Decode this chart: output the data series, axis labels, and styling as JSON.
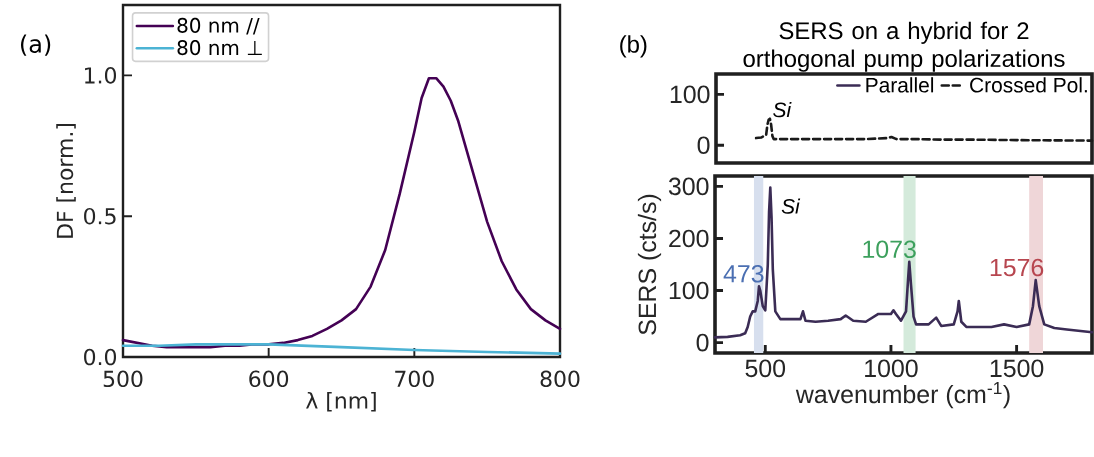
{
  "chart_data": [
    {
      "type": "line",
      "xlabel": "λ [nm]",
      "ylabel": "DF [norm.]",
      "xlim": [
        500,
        800
      ],
      "ylim": [
        0,
        1.25
      ],
      "xticks": [
        500,
        600,
        700,
        800
      ],
      "yticks": [
        {
          "value": 0,
          "label": "0.0"
        },
        {
          "value": 0.5,
          "label": "0.5"
        },
        {
          "value": 1,
          "label": "1.0"
        }
      ],
      "legend": "top left",
      "annotations": [
        "(a)"
      ],
      "series": [
        {
          "name": "80 nm //",
          "color": "#440154",
          "x": [
            500,
            510,
            520,
            530,
            540,
            550,
            560,
            570,
            580,
            590,
            600,
            610,
            620,
            630,
            640,
            650,
            660,
            670,
            680,
            690,
            700,
            705,
            710,
            715,
            720,
            725,
            730,
            740,
            750,
            760,
            770,
            780,
            790,
            800
          ],
          "values": [
            0.06,
            0.05,
            0.04,
            0.035,
            0.035,
            0.035,
            0.035,
            0.04,
            0.04,
            0.045,
            0.045,
            0.05,
            0.06,
            0.075,
            0.1,
            0.13,
            0.17,
            0.25,
            0.38,
            0.58,
            0.8,
            0.92,
            0.99,
            0.99,
            0.96,
            0.91,
            0.84,
            0.66,
            0.48,
            0.34,
            0.24,
            0.17,
            0.13,
            0.1
          ]
        },
        {
          "name": "80 nm ⊥",
          "color": "#4cb3d4",
          "x": [
            500,
            525,
            550,
            575,
            600,
            650,
            700,
            750,
            800
          ],
          "values": [
            0.04,
            0.04,
            0.045,
            0.045,
            0.045,
            0.035,
            0.025,
            0.018,
            0.012
          ]
        }
      ]
    },
    {
      "type": "line",
      "title": "SERS on a hybrid for 2 orthogonal pump polarizations",
      "xlim": [
        300,
        1800
      ],
      "ylim": [
        -35,
        140
      ],
      "yticks": [
        0,
        100
      ],
      "tick_labels": "y",
      "legend": "top right",
      "annotations": [
        "(b)",
        "Si"
      ],
      "series": [
        {
          "name": "Crossed Pol.",
          "color": "#1a1a1a",
          "line_style": "dashed",
          "x": [
            460,
            480,
            500,
            505,
            510,
            515,
            520,
            525,
            530,
            600,
            700,
            800,
            900,
            980,
            1000,
            1020,
            1100,
            1200,
            1300,
            1500,
            1800
          ],
          "values": [
            14,
            15,
            20,
            40,
            50,
            52,
            40,
            18,
            12,
            12,
            12,
            12,
            12,
            14,
            16,
            12,
            12,
            11,
            11,
            10,
            9
          ]
        }
      ]
    },
    {
      "type": "line",
      "xlabel": "wavenumber (cm$^{-1}$)",
      "ylabel": "SERS (cts/s)",
      "xlim": [
        300,
        1800
      ],
      "ylim": [
        -20,
        320
      ],
      "xticks": [
        500,
        1000,
        1500
      ],
      "yticks": [
        0,
        100,
        200,
        300
      ],
      "bands": [
        {
          "axis": "x",
          "from": 455,
          "to": 492,
          "label": "473",
          "color": "#d7dfee"
        },
        {
          "axis": "x",
          "from": 1050,
          "to": 1098,
          "label": "1073",
          "color": "#d4eadb"
        },
        {
          "axis": "x",
          "from": 1550,
          "to": 1605,
          "label": "1576",
          "color": "#efd6d8"
        }
      ],
      "annotations": [
        "Si"
      ],
      "series": [
        {
          "name": "Parallel",
          "color": "#3b2c55",
          "x": [
            300,
            350,
            400,
            420,
            430,
            440,
            450,
            460,
            470,
            475,
            480,
            490,
            500,
            510,
            515,
            520,
            525,
            530,
            540,
            560,
            600,
            640,
            650,
            660,
            700,
            750,
            800,
            820,
            850,
            900,
            950,
            1000,
            1010,
            1020,
            1040,
            1060,
            1068,
            1073,
            1080,
            1090,
            1100,
            1150,
            1180,
            1200,
            1250,
            1265,
            1270,
            1280,
            1300,
            1400,
            1450,
            1500,
            1550,
            1565,
            1576,
            1590,
            1610,
            1650,
            1700,
            1800
          ],
          "values": [
            10,
            11,
            14,
            18,
            30,
            50,
            60,
            60,
            80,
            108,
            100,
            70,
            62,
            150,
            250,
            298,
            240,
            140,
            60,
            45,
            45,
            45,
            60,
            42,
            40,
            42,
            45,
            52,
            42,
            40,
            55,
            55,
            62,
            55,
            42,
            60,
            120,
            155,
            110,
            50,
            35,
            35,
            48,
            32,
            35,
            60,
            80,
            40,
            30,
            30,
            35,
            30,
            35,
            70,
            120,
            70,
            35,
            28,
            25,
            20
          ]
        }
      ]
    }
  ]
}
